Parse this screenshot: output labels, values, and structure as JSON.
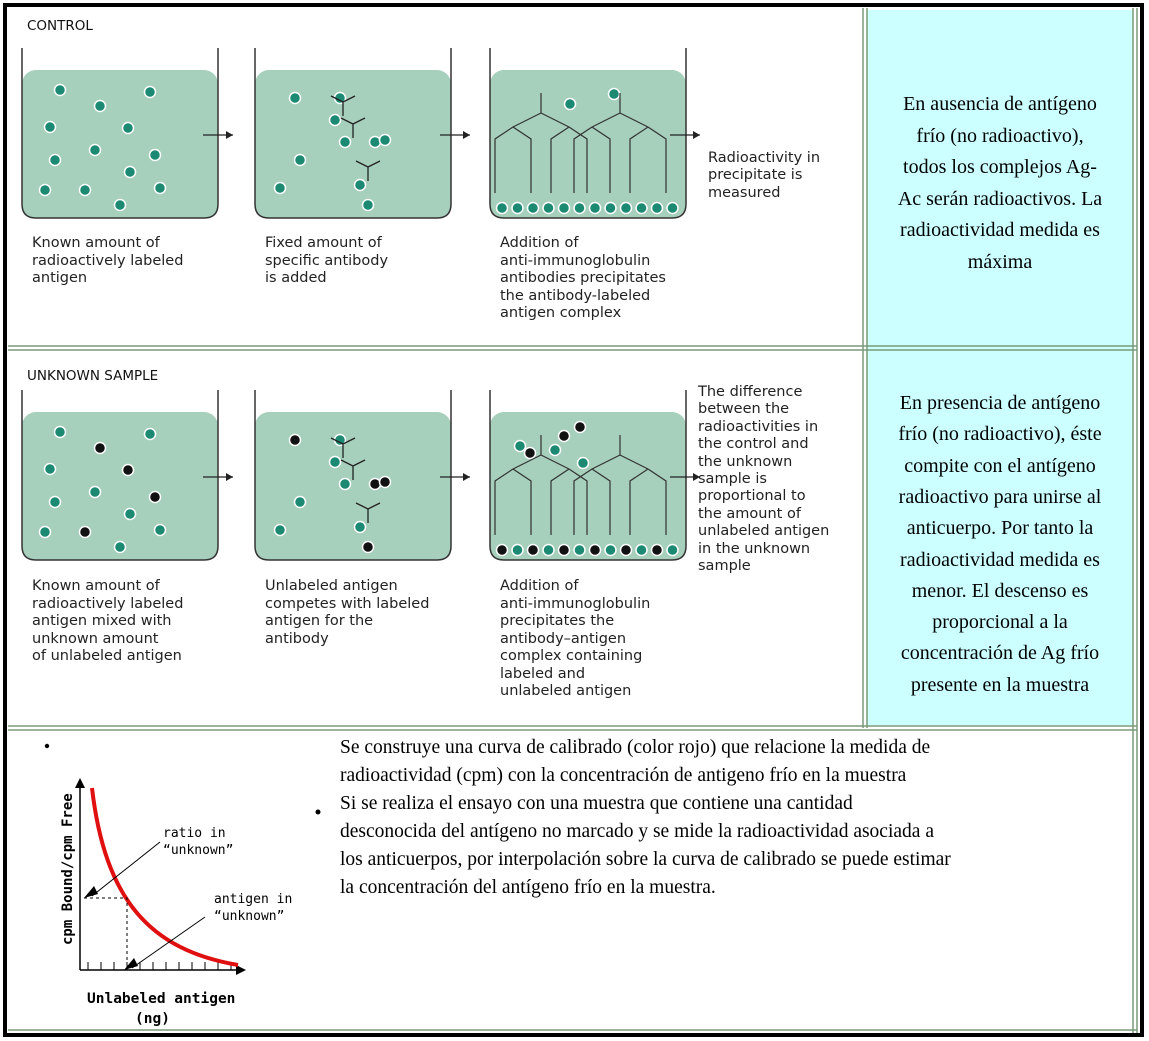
{
  "control": {
    "label": "CONTROL",
    "steps": [
      [
        "Known amount of",
        "radioactively labeled",
        "antigen"
      ],
      [
        "Fixed amount of",
        "specific antibody",
        "is added"
      ],
      [
        "Addition of",
        "anti-immunoglobulin",
        "antibodies precipitates",
        "the antibody-labeled",
        "antigen complex"
      ]
    ],
    "result": [
      "Radioactivity in",
      "precipitate is",
      "measured"
    ],
    "note": [
      "En ausencia de antígeno",
      "frío (no radioactivo),",
      "todos los complejos Ag-",
      "Ac serán radioactivos. La",
      "radioactividad medida es",
      "máxima"
    ]
  },
  "unknown": {
    "label": "UNKNOWN SAMPLE",
    "steps": [
      [
        "Known amount of",
        "radioactively labeled",
        "antigen mixed with",
        "unknown amount",
        "of unlabeled antigen"
      ],
      [
        "Unlabeled antigen",
        "competes with labeled",
        "antigen for the",
        "antibody"
      ],
      [
        "Addition of",
        "anti-immunoglobulin",
        "precipitates the",
        "antibody–antigen",
        "complex containing",
        "labeled and",
        "unlabeled antigen"
      ]
    ],
    "result": [
      "The difference",
      "between the",
      "radioactivities in",
      "the control and",
      "the unknown",
      "sample is",
      "proportional to",
      "the amount of",
      "unlabeled antigen",
      "in the unknown",
      "sample"
    ],
    "note": [
      "En presencia de antígeno",
      "frío (no radioactivo), éste",
      "compite con el antígeno",
      "radioactivo para unirse al",
      "anticuerpo. Por tanto la",
      "radioactividad medida es",
      "menor. El descenso es",
      "proporcional a la",
      "concentración de Ag frío",
      "presente en la muestra"
    ]
  },
  "calibration": {
    "y_label": "cpm Bound/cpm Free",
    "x_label": [
      "Unlabeled antigen",
      "(ng)"
    ],
    "ratio_label": [
      "ratio in",
      "“unknown”"
    ],
    "antigen_label": [
      "antigen in",
      "“unknown”"
    ],
    "bullets": [
      [
        "Se construye una curva de calibrado (color rojo) que relacione la medida de",
        "radioactividad (cpm) con la concentración de antigeno frío en la muestra"
      ],
      [
        "Si se realiza el ensayo con una muestra que contiene una cantidad",
        "desconocida del antígeno no marcado y se mide la radioactividad asociada a",
        "los anticuerpos, por interpolación sobre la curva de calibrado se puede estimar",
        "la concentración del antígeno frío en la muestra."
      ]
    ]
  }
}
